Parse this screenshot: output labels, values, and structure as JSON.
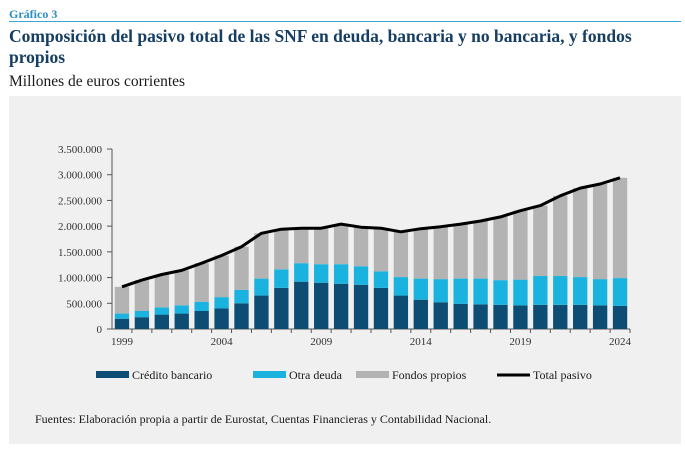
{
  "figure": {
    "label": "Gráfico 3",
    "title": "Composición del pasivo total de las SNF en deuda, bancaria y no bancaria, y fondos propios",
    "subtitle": "Millones de euros corrientes",
    "source": "Fuentes: Elaboración propia a partir de Eurostat, Cuentas Financieras y Contabilidad Nacional."
  },
  "colors": {
    "credito": "#0d4d74",
    "otra": "#1ab3e0",
    "fondos": "#b3b3b3",
    "total": "#000000",
    "accent": "#2a8fc0",
    "title": "#163e63"
  },
  "chart_data": {
    "type": "bar",
    "stacked": true,
    "categories": [
      "1999",
      "2000",
      "2001",
      "2002",
      "2003",
      "2004",
      "2005",
      "2006",
      "2007",
      "2008",
      "2009",
      "2010",
      "2011",
      "2012",
      "2013",
      "2014",
      "2015",
      "2016",
      "2017",
      "2018",
      "2019",
      "2020",
      "2021",
      "2022",
      "2023",
      "2024"
    ],
    "series": [
      {
        "name": "Crédito bancario",
        "kind": "bar",
        "values": [
          200000,
          230000,
          280000,
          300000,
          350000,
          400000,
          500000,
          650000,
          800000,
          920000,
          900000,
          880000,
          860000,
          800000,
          650000,
          570000,
          520000,
          490000,
          480000,
          470000,
          460000,
          470000,
          470000,
          470000,
          460000,
          450000
        ]
      },
      {
        "name": "Otra deuda",
        "kind": "bar",
        "values": [
          100000,
          120000,
          140000,
          160000,
          180000,
          220000,
          260000,
          330000,
          360000,
          360000,
          360000,
          380000,
          360000,
          320000,
          360000,
          410000,
          450000,
          490000,
          500000,
          480000,
          500000,
          560000,
          560000,
          540000,
          510000,
          540000
        ]
      },
      {
        "name": "Fondos propios",
        "kind": "bar",
        "values": [
          520000,
          600000,
          640000,
          680000,
          750000,
          810000,
          840000,
          880000,
          780000,
          680000,
          700000,
          780000,
          760000,
          840000,
          880000,
          970000,
          1020000,
          1060000,
          1120000,
          1230000,
          1340000,
          1370000,
          1560000,
          1730000,
          1850000,
          1950000
        ]
      },
      {
        "name": "Total pasivo",
        "kind": "line",
        "values": [
          820000,
          950000,
          1060000,
          1140000,
          1280000,
          1430000,
          1600000,
          1860000,
          1940000,
          1960000,
          1960000,
          2040000,
          1980000,
          1960000,
          1890000,
          1950000,
          1990000,
          2040000,
          2100000,
          2180000,
          2300000,
          2400000,
          2590000,
          2740000,
          2820000,
          2940000
        ]
      }
    ],
    "x_tick_labels": [
      "1999",
      "2004",
      "2009",
      "2014",
      "2019",
      "2024"
    ],
    "y_tick_labels": [
      "0",
      "500.000",
      "1.000.000",
      "1.500.000",
      "2.000.000",
      "2.500.000",
      "3.000.000",
      "3.500.000"
    ],
    "ylim": [
      0,
      3500000
    ],
    "grid": false,
    "legend_position": "bottom"
  }
}
